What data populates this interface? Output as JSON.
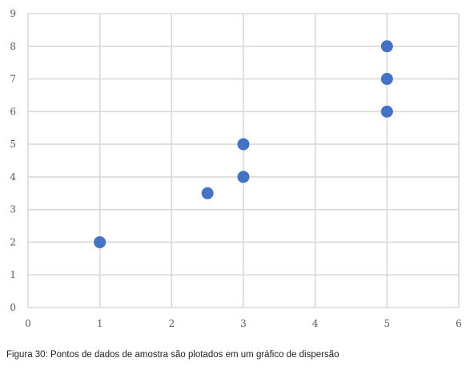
{
  "chart_data": {
    "type": "scatter",
    "title": "",
    "xlabel": "",
    "ylabel": "",
    "xlim": [
      0,
      6
    ],
    "ylim": [
      0,
      9
    ],
    "x_ticks": [
      0,
      1,
      2,
      3,
      4,
      5,
      6
    ],
    "y_ticks": [
      0,
      1,
      2,
      3,
      4,
      5,
      6,
      7,
      8,
      9
    ],
    "grid": true,
    "legend": "none",
    "series": [
      {
        "color": "#4472C4",
        "points": [
          {
            "x": 1,
            "y": 2
          },
          {
            "x": 2.5,
            "y": 3.5
          },
          {
            "x": 3,
            "y": 4
          },
          {
            "x": 3,
            "y": 5
          },
          {
            "x": 5,
            "y": 6
          },
          {
            "x": 5,
            "y": 7
          },
          {
            "x": 5,
            "y": 8
          }
        ]
      }
    ],
    "colors": {
      "grid": "#d9d9d9",
      "tick_text": "#595959"
    }
  },
  "caption": "Figura 30: Pontos de dados de amostra são plotados em um gráfico de dispersão"
}
